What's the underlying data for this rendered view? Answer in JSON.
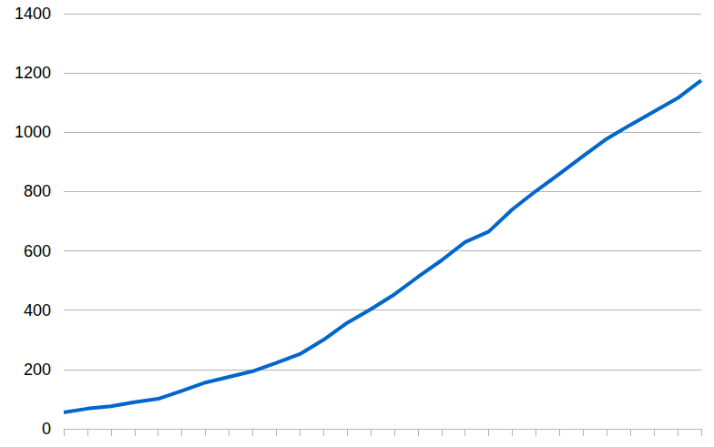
{
  "chart_data": {
    "type": "line",
    "categories": [
      null,
      null,
      null,
      null,
      null,
      null,
      null,
      null,
      null,
      null,
      null,
      null,
      null,
      null,
      null,
      null,
      null,
      null,
      null,
      null,
      null,
      null,
      null,
      null,
      null,
      null,
      null,
      null
    ],
    "values": [
      55,
      68,
      76,
      90,
      101,
      128,
      156,
      175,
      194,
      222,
      252,
      300,
      357,
      403,
      453,
      512,
      568,
      630,
      665,
      740,
      802,
      860,
      920,
      978,
      1025,
      1070,
      1115,
      1175
    ],
    "color": "#0066cc",
    "ylim": [
      0,
      1400
    ],
    "yticks": [
      0,
      200,
      400,
      600,
      800,
      1000,
      1200,
      1400
    ],
    "grid": true,
    "tick_labels": "y"
  }
}
